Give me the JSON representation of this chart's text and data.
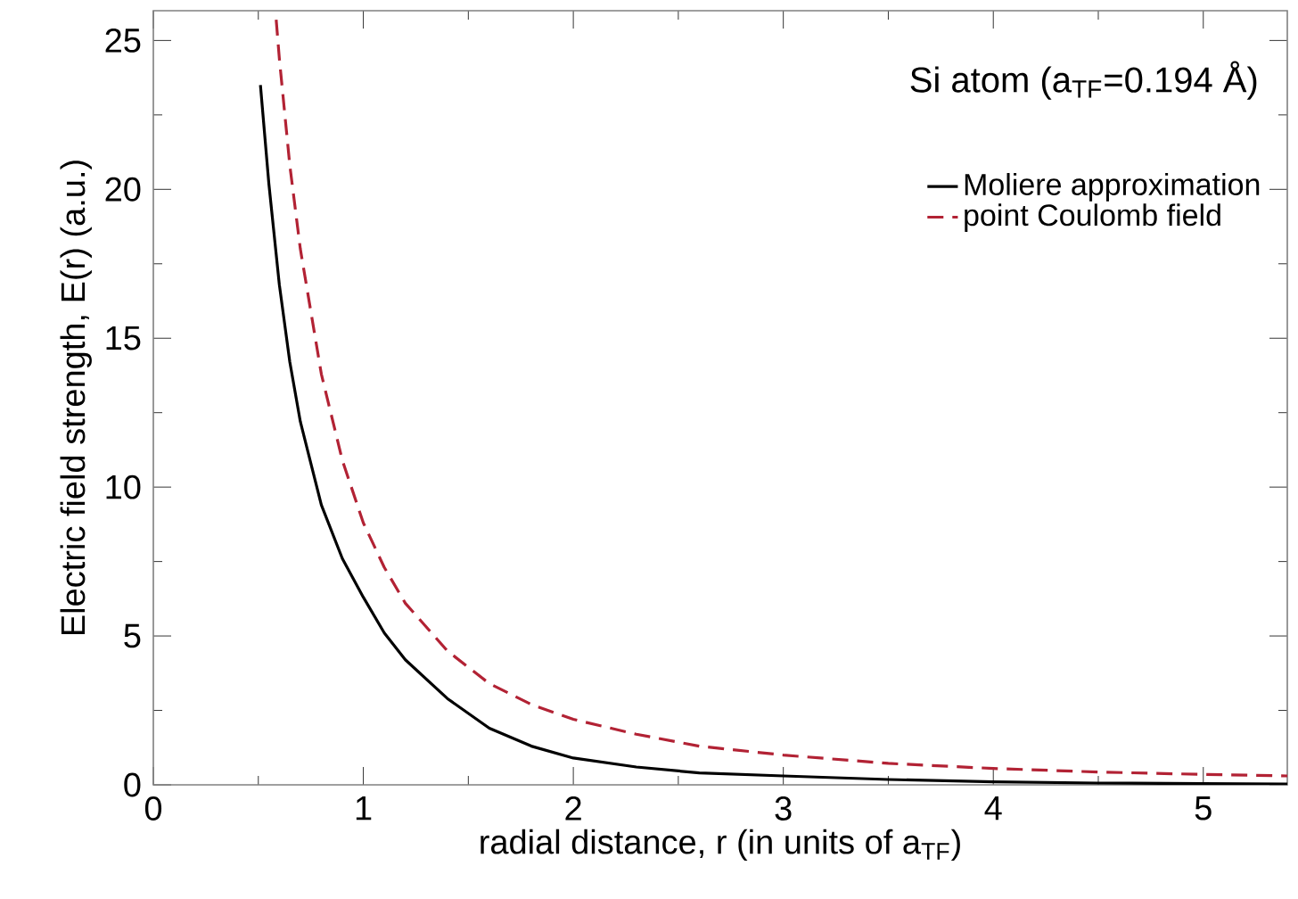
{
  "chart_data": {
    "type": "line",
    "xlabel": "radial distance, r (in units of a$_{TF}$)",
    "ylabel": "Electric field strength, E(r) (a.u.)",
    "annotations": [
      "Si atom (a$_{TF}$=0.194 Å)"
    ],
    "xlim": [
      0,
      5.4
    ],
    "ylim": [
      0,
      26
    ],
    "xticks": [
      0,
      1,
      2,
      3,
      4,
      5
    ],
    "yticks": [
      0,
      5,
      10,
      15,
      20,
      25
    ],
    "legend": "top right",
    "grid": false,
    "series": [
      {
        "name": "Moliere approximation",
        "color": "#000000",
        "line_style": "solid",
        "x": [
          0.51,
          0.55,
          0.6,
          0.65,
          0.7,
          0.8,
          0.9,
          1.0,
          1.1,
          1.2,
          1.4,
          1.6,
          1.8,
          2.0,
          2.3,
          2.6,
          3.0,
          3.5,
          4.0,
          4.5,
          5.0,
          5.4
        ],
        "values": [
          23.5,
          20.2,
          16.8,
          14.2,
          12.2,
          9.4,
          7.6,
          6.3,
          5.1,
          4.2,
          2.9,
          1.9,
          1.3,
          0.9,
          0.6,
          0.4,
          0.3,
          0.18,
          0.1,
          0.06,
          0.04,
          0.03
        ]
      },
      {
        "name": "point Coulomb field",
        "color": "#b22234",
        "line_style": "dashed",
        "x": [
          0.585,
          0.6,
          0.65,
          0.7,
          0.8,
          0.9,
          1.0,
          1.1,
          1.2,
          1.4,
          1.6,
          1.8,
          2.0,
          2.3,
          2.6,
          3.0,
          3.5,
          4.0,
          4.5,
          5.0,
          5.4
        ],
        "values": [
          25.7,
          24.4,
          20.8,
          18.0,
          13.8,
          10.9,
          8.8,
          7.3,
          6.1,
          4.5,
          3.4,
          2.7,
          2.2,
          1.7,
          1.3,
          1.0,
          0.72,
          0.55,
          0.43,
          0.35,
          0.3
        ]
      }
    ]
  }
}
